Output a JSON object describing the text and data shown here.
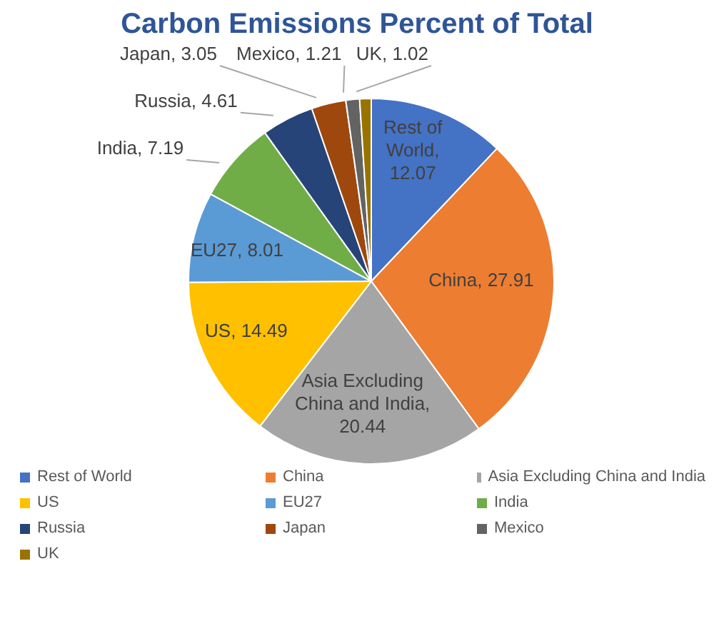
{
  "chart_data": {
    "type": "pie",
    "title": "Carbon Emissions Percent of Total",
    "categories": [
      "Rest of World",
      "China",
      "Asia Excluding China and India",
      "US",
      "EU27",
      "India",
      "Russia",
      "Japan",
      "Mexico",
      "UK"
    ],
    "values": [
      12.07,
      27.91,
      20.44,
      14.49,
      8.01,
      7.19,
      4.61,
      3.05,
      1.21,
      1.02
    ],
    "value_labels": [
      "Rest of World, 12.07",
      "China, 27.91",
      "Asia Excluding China and India, 20.44",
      "US, 14.49",
      "EU27, 8.01",
      "India, 7.19",
      "Russia, 4.61",
      "Japan, 3.05",
      "Mexico, 1.21",
      "UK, 1.02"
    ],
    "colors": [
      "#4472c4",
      "#ed7d31",
      "#a5a5a5",
      "#ffc000",
      "#5b9bd5",
      "#70ad47",
      "#264478",
      "#9e480e",
      "#636363",
      "#997300"
    ],
    "legend": "bottom"
  }
}
